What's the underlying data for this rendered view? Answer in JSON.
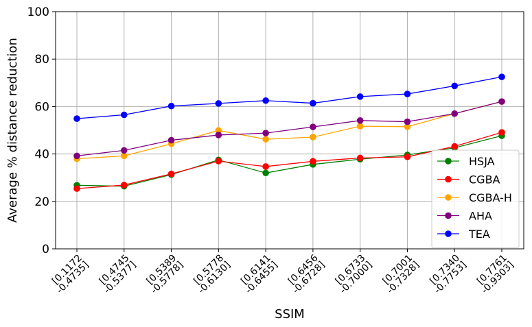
{
  "chart_data": {
    "type": "line",
    "xlabel": "SSIM",
    "ylabel": "Average % distance reduction",
    "ylim": [
      0,
      100
    ],
    "yticks": [
      0,
      20,
      40,
      60,
      80,
      100
    ],
    "grid": true,
    "legend_position": "lower-right",
    "categories": [
      [
        "[0.1172",
        "-0.4735]"
      ],
      [
        "[0.4745",
        "-0.5377]"
      ],
      [
        "[0.5389",
        "-0.5778]"
      ],
      [
        "[0.5778",
        "-0.6130]"
      ],
      [
        "[0.6141",
        "-0.6455]"
      ],
      [
        "[0.6456",
        "-0.6728]"
      ],
      [
        "[0.6733",
        "-0.7000]"
      ],
      [
        "[0.7001",
        "-0.7328]"
      ],
      [
        "[0.7340",
        "-0.7753]"
      ],
      [
        "[0.7761",
        "-0.9303]"
      ]
    ],
    "series": [
      {
        "name": "HSJA",
        "color": "#008000",
        "values": [
          26.8,
          26.4,
          31.3,
          37.5,
          32.0,
          35.6,
          37.8,
          39.6,
          42.6,
          47.7
        ]
      },
      {
        "name": "CGBA",
        "color": "#ff0000",
        "values": [
          25.4,
          26.9,
          31.6,
          37.0,
          34.7,
          36.9,
          38.3,
          38.8,
          43.2,
          49.1
        ]
      },
      {
        "name": "CGBA-H",
        "color": "#ffa500",
        "values": [
          38.0,
          39.2,
          44.3,
          49.9,
          46.2,
          47.1,
          51.7,
          51.5,
          57.0,
          62.1
        ]
      },
      {
        "name": "AHA",
        "color": "#800080",
        "values": [
          39.2,
          41.5,
          45.8,
          48.0,
          48.8,
          51.4,
          54.1,
          53.6,
          57.0,
          62.1
        ]
      },
      {
        "name": "TEA",
        "color": "#0000ff",
        "values": [
          54.9,
          56.5,
          60.2,
          61.3,
          62.5,
          61.4,
          64.2,
          65.3,
          68.7,
          72.5
        ]
      }
    ]
  }
}
